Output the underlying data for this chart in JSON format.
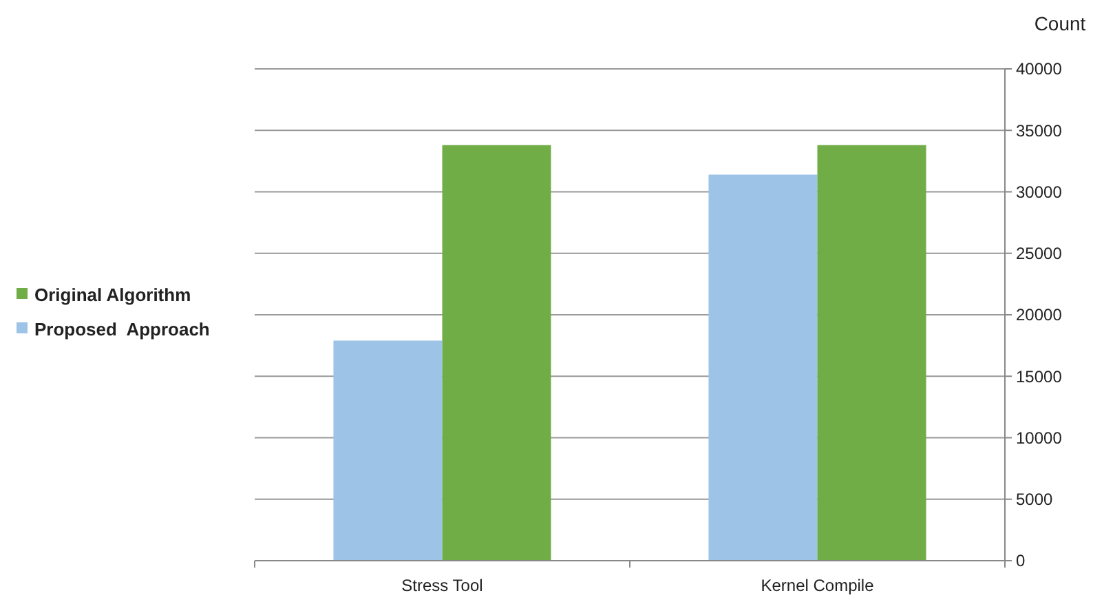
{
  "chart_data": {
    "type": "bar",
    "ylabel": "Count",
    "categories": [
      "Stress Tool",
      "Kernel Compile"
    ],
    "series": [
      {
        "name": "Proposed  Approach",
        "color": "#9dc3e6",
        "values": [
          17900,
          31400
        ]
      },
      {
        "name": "Original Algorithm",
        "color": "#70ad47",
        "values": [
          33800,
          33800
        ]
      }
    ],
    "ylim": [
      0,
      40000
    ],
    "yticks": [
      0,
      5000,
      10000,
      15000,
      20000,
      25000,
      30000,
      35000,
      40000
    ],
    "grid": "y",
    "legend": "left"
  }
}
